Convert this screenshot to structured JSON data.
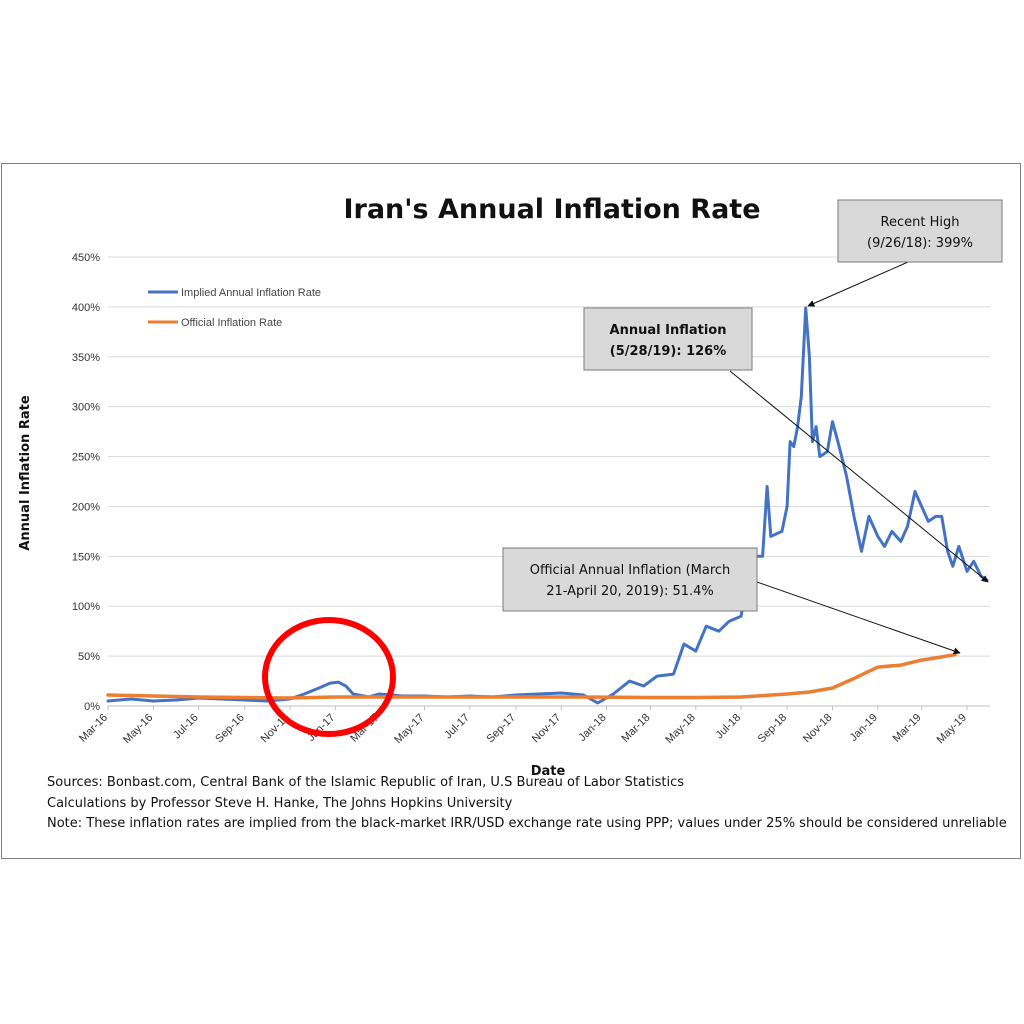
{
  "chart_data": {
    "type": "line",
    "title": "Iran's Annual Inflation Rate",
    "xlabel": "Date",
    "ylabel": "Annual Inflation Rate",
    "ylim": [
      0,
      450
    ],
    "yticks": [
      "0%",
      "50%",
      "100%",
      "150%",
      "200%",
      "250%",
      "300%",
      "350%",
      "400%",
      "450%"
    ],
    "xticks": [
      "Mar-16",
      "May-16",
      "Jul-16",
      "Sep-16",
      "Nov-16",
      "Jan-17",
      "Mar-17",
      "May-17",
      "Jul-17",
      "Sep-17",
      "Nov-17",
      "Jan-18",
      "Mar-18",
      "May-18",
      "Jul-18",
      "Sep-18",
      "Nov-18",
      "Jan-19",
      "Mar-19",
      "May-19"
    ],
    "grid": true,
    "legend_position": "top-left",
    "series": [
      {
        "name": "Implied Annual Inflation Rate",
        "color": "#4472c4",
        "points": [
          [
            "2016-03-01",
            5
          ],
          [
            "2016-04-01",
            7
          ],
          [
            "2016-05-01",
            5
          ],
          [
            "2016-06-01",
            6
          ],
          [
            "2016-07-01",
            8
          ],
          [
            "2016-08-01",
            7
          ],
          [
            "2016-09-01",
            6
          ],
          [
            "2016-10-01",
            5
          ],
          [
            "2016-11-01",
            7
          ],
          [
            "2016-11-20",
            12
          ],
          [
            "2016-12-10",
            18
          ],
          [
            "2016-12-25",
            23
          ],
          [
            "2017-01-05",
            24
          ],
          [
            "2017-01-15",
            20
          ],
          [
            "2017-01-25",
            12
          ],
          [
            "2017-02-15",
            9
          ],
          [
            "2017-03-01",
            12
          ],
          [
            "2017-04-01",
            10
          ],
          [
            "2017-05-01",
            10
          ],
          [
            "2017-06-01",
            9
          ],
          [
            "2017-07-01",
            10
          ],
          [
            "2017-08-01",
            9
          ],
          [
            "2017-09-01",
            11
          ],
          [
            "2017-10-01",
            12
          ],
          [
            "2017-11-01",
            13
          ],
          [
            "2017-12-01",
            11
          ],
          [
            "2017-12-20",
            3
          ],
          [
            "2018-01-10",
            12
          ],
          [
            "2018-02-01",
            25
          ],
          [
            "2018-02-20",
            20
          ],
          [
            "2018-03-10",
            30
          ],
          [
            "2018-04-01",
            32
          ],
          [
            "2018-04-15",
            62
          ],
          [
            "2018-05-01",
            55
          ],
          [
            "2018-05-15",
            80
          ],
          [
            "2018-06-01",
            75
          ],
          [
            "2018-06-15",
            85
          ],
          [
            "2018-07-01",
            90
          ],
          [
            "2018-07-15",
            150
          ],
          [
            "2018-07-30",
            150
          ],
          [
            "2018-08-05",
            220
          ],
          [
            "2018-08-10",
            170
          ],
          [
            "2018-08-25",
            175
          ],
          [
            "2018-09-01",
            200
          ],
          [
            "2018-09-05",
            265
          ],
          [
            "2018-09-10",
            260
          ],
          [
            "2018-09-15",
            280
          ],
          [
            "2018-09-20",
            310
          ],
          [
            "2018-09-26",
            399
          ],
          [
            "2018-10-01",
            350
          ],
          [
            "2018-10-05",
            265
          ],
          [
            "2018-10-10",
            280
          ],
          [
            "2018-10-15",
            250
          ],
          [
            "2018-10-25",
            255
          ],
          [
            "2018-11-01",
            285
          ],
          [
            "2018-11-10",
            260
          ],
          [
            "2018-11-20",
            230
          ],
          [
            "2018-11-30",
            190
          ],
          [
            "2018-12-10",
            155
          ],
          [
            "2018-12-20",
            190
          ],
          [
            "2019-01-01",
            170
          ],
          [
            "2019-01-10",
            160
          ],
          [
            "2019-01-20",
            175
          ],
          [
            "2019-02-01",
            165
          ],
          [
            "2019-02-10",
            180
          ],
          [
            "2019-02-20",
            215
          ],
          [
            "2019-03-01",
            200
          ],
          [
            "2019-03-10",
            185
          ],
          [
            "2019-03-20",
            190
          ],
          [
            "2019-03-28",
            190
          ],
          [
            "2019-04-05",
            155
          ],
          [
            "2019-04-12",
            140
          ],
          [
            "2019-04-20",
            160
          ],
          [
            "2019-05-01",
            135
          ],
          [
            "2019-05-10",
            145
          ],
          [
            "2019-05-20",
            130
          ],
          [
            "2019-05-28",
            126
          ]
        ]
      },
      {
        "name": "Official Inflation Rate",
        "color": "#ed7d31",
        "points": [
          [
            "2016-03-01",
            11
          ],
          [
            "2016-05-01",
            10
          ],
          [
            "2016-07-01",
            9
          ],
          [
            "2016-09-01",
            8.5
          ],
          [
            "2016-11-01",
            8
          ],
          [
            "2017-01-01",
            9
          ],
          [
            "2017-03-01",
            9
          ],
          [
            "2017-06-01",
            9
          ],
          [
            "2017-09-01",
            9
          ],
          [
            "2017-12-01",
            9
          ],
          [
            "2018-03-01",
            8.5
          ],
          [
            "2018-05-01",
            8.5
          ],
          [
            "2018-07-01",
            9
          ],
          [
            "2018-09-01",
            12
          ],
          [
            "2018-10-01",
            14
          ],
          [
            "2018-11-01",
            18
          ],
          [
            "2018-12-01",
            28
          ],
          [
            "2019-01-01",
            39
          ],
          [
            "2019-02-01",
            41
          ],
          [
            "2019-03-01",
            46
          ],
          [
            "2019-04-15",
            51.4
          ]
        ]
      }
    ],
    "annotations": [
      {
        "line1": "Recent High",
        "line2": "(9/26/18): 399%",
        "bold": false
      },
      {
        "line1": "Annual Inflation",
        "line2": "(5/28/19): 126%",
        "bold": true
      },
      {
        "line1": "Official Annual Inflation (March",
        "line2": "21-April 20, 2019): 51.4%",
        "bold": false
      }
    ],
    "highlight": {
      "shape": "circle",
      "color": "#ff0000",
      "around": "Jan-17"
    }
  },
  "footer": {
    "sources": "Sources: Bonbast.com, Central Bank of the Islamic Republic of Iran, U.S Bureau of Labor Statistics",
    "calculations": "Calculations by Professor Steve H. Hanke, The Johns Hopkins University",
    "note": "Note: These inflation rates are implied from the black-market IRR/USD exchange rate using PPP; values under 25% should be considered unreliable"
  }
}
